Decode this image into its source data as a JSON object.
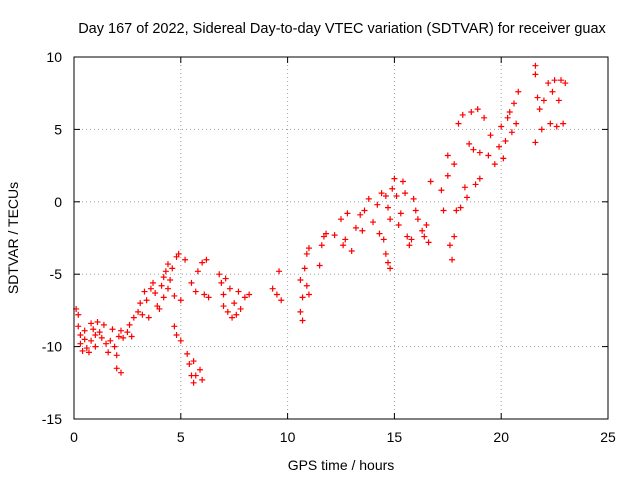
{
  "chart_data": {
    "type": "scatter",
    "title": "Day 167 of 2022, Sidereal Day-to-day VTEC variation (SDTVAR) for receiver guax",
    "xlabel": "GPS time / hours",
    "ylabel": "SDTVAR / TECUs",
    "xlim": [
      0,
      25
    ],
    "ylim": [
      -15,
      10
    ],
    "xticks": [
      0,
      5,
      10,
      15,
      20,
      25
    ],
    "yticks": [
      -15,
      -10,
      -5,
      0,
      5,
      10
    ],
    "xtick_labels": [
      "0",
      "5",
      "10",
      "15",
      "20",
      "25"
    ],
    "ytick_labels": [
      "-15",
      "-10",
      "-5",
      "0",
      "5",
      "10"
    ],
    "grid": true,
    "marker": "+",
    "color": "#ff0000",
    "series": [
      {
        "name": "SDTVAR",
        "points": [
          [
            0.1,
            -7.4
          ],
          [
            0.2,
            -7.8
          ],
          [
            0.2,
            -8.6
          ],
          [
            0.3,
            -9.2
          ],
          [
            0.3,
            -9.8
          ],
          [
            0.4,
            -10.3
          ],
          [
            0.5,
            -9.5
          ],
          [
            0.5,
            -8.9
          ],
          [
            0.6,
            -10.1
          ],
          [
            0.7,
            -10.4
          ],
          [
            0.8,
            -9.6
          ],
          [
            0.8,
            -8.4
          ],
          [
            0.9,
            -8.8
          ],
          [
            1.0,
            -9.2
          ],
          [
            1.0,
            -10.0
          ],
          [
            1.1,
            -8.3
          ],
          [
            1.2,
            -9.0
          ],
          [
            1.3,
            -9.4
          ],
          [
            1.4,
            -8.5
          ],
          [
            1.5,
            -9.8
          ],
          [
            1.6,
            -10.4
          ],
          [
            1.7,
            -9.6
          ],
          [
            1.8,
            -8.8
          ],
          [
            1.9,
            -10.0
          ],
          [
            2.0,
            -10.6
          ],
          [
            2.1,
            -9.3
          ],
          [
            2.2,
            -8.9
          ],
          [
            2.0,
            -11.5
          ],
          [
            2.2,
            -11.8
          ],
          [
            2.3,
            -9.4
          ],
          [
            2.5,
            -9.0
          ],
          [
            2.6,
            -8.5
          ],
          [
            2.7,
            -9.3
          ],
          [
            2.8,
            -8.0
          ],
          [
            3.0,
            -7.6
          ],
          [
            3.1,
            -7.0
          ],
          [
            3.2,
            -7.8
          ],
          [
            3.3,
            -6.2
          ],
          [
            3.4,
            -6.8
          ],
          [
            3.5,
            -8.0
          ],
          [
            3.6,
            -6.0
          ],
          [
            3.7,
            -5.6
          ],
          [
            3.8,
            -6.3
          ],
          [
            3.9,
            -7.2
          ],
          [
            4.0,
            -7.4
          ],
          [
            4.1,
            -5.8
          ],
          [
            4.2,
            -5.2
          ],
          [
            4.2,
            -6.6
          ],
          [
            4.3,
            -4.8
          ],
          [
            4.4,
            -6.0
          ],
          [
            4.4,
            -4.3
          ],
          [
            4.5,
            -5.4
          ],
          [
            4.6,
            -4.6
          ],
          [
            4.7,
            -6.5
          ],
          [
            4.7,
            -8.6
          ],
          [
            4.8,
            -3.8
          ],
          [
            4.8,
            -9.2
          ],
          [
            4.9,
            -3.6
          ],
          [
            5.0,
            -9.6
          ],
          [
            5.0,
            -6.8
          ],
          [
            5.2,
            -4.0
          ],
          [
            5.3,
            -10.5
          ],
          [
            5.4,
            -11.2
          ],
          [
            5.5,
            -12.0
          ],
          [
            5.5,
            -5.6
          ],
          [
            5.6,
            -12.5
          ],
          [
            5.6,
            -11.0
          ],
          [
            5.7,
            -6.2
          ],
          [
            5.7,
            -12.0
          ],
          [
            5.8,
            -4.8
          ],
          [
            5.9,
            -11.6
          ],
          [
            6.0,
            -4.2
          ],
          [
            6.0,
            -12.3
          ],
          [
            6.1,
            -6.4
          ],
          [
            6.2,
            -4.0
          ],
          [
            6.3,
            -6.6
          ],
          [
            6.8,
            -5.0
          ],
          [
            6.9,
            -5.6
          ],
          [
            7.0,
            -6.4
          ],
          [
            7.0,
            -7.2
          ],
          [
            7.1,
            -5.3
          ],
          [
            7.2,
            -7.6
          ],
          [
            7.3,
            -6.0
          ],
          [
            7.4,
            -8.0
          ],
          [
            7.5,
            -7.0
          ],
          [
            7.6,
            -7.8
          ],
          [
            7.7,
            -6.2
          ],
          [
            7.8,
            -7.4
          ],
          [
            8.0,
            -6.6
          ],
          [
            8.2,
            -6.4
          ],
          [
            9.3,
            -6.0
          ],
          [
            9.5,
            -6.4
          ],
          [
            9.6,
            -4.8
          ],
          [
            9.7,
            -6.8
          ],
          [
            10.6,
            -5.4
          ],
          [
            10.6,
            -7.6
          ],
          [
            10.7,
            -6.6
          ],
          [
            10.7,
            -8.2
          ],
          [
            10.8,
            -4.6
          ],
          [
            10.9,
            -3.6
          ],
          [
            10.9,
            -5.8
          ],
          [
            11.0,
            -3.2
          ],
          [
            11.0,
            -6.4
          ],
          [
            11.5,
            -4.4
          ],
          [
            11.6,
            -3.0
          ],
          [
            11.7,
            -2.4
          ],
          [
            11.8,
            -2.2
          ],
          [
            12.2,
            -2.3
          ],
          [
            12.5,
            -1.2
          ],
          [
            12.6,
            -3.0
          ],
          [
            12.7,
            -2.6
          ],
          [
            12.8,
            -0.8
          ],
          [
            13.0,
            -3.4
          ],
          [
            13.2,
            -1.8
          ],
          [
            13.4,
            -0.9
          ],
          [
            13.5,
            -2.0
          ],
          [
            13.6,
            -0.6
          ],
          [
            13.8,
            0.2
          ],
          [
            14.0,
            -1.4
          ],
          [
            14.2,
            -0.2
          ],
          [
            14.3,
            -2.2
          ],
          [
            14.4,
            0.6
          ],
          [
            14.5,
            -2.6
          ],
          [
            14.6,
            0.4
          ],
          [
            14.6,
            -3.6
          ],
          [
            14.7,
            -4.2
          ],
          [
            14.7,
            -0.4
          ],
          [
            14.8,
            -4.6
          ],
          [
            14.8,
            -1.2
          ],
          [
            14.9,
            0.9
          ],
          [
            15.0,
            1.6
          ],
          [
            15.1,
            0.4
          ],
          [
            15.2,
            -1.6
          ],
          [
            15.3,
            -0.8
          ],
          [
            15.4,
            1.4
          ],
          [
            15.5,
            0.6
          ],
          [
            15.6,
            -2.4
          ],
          [
            15.7,
            -3.0
          ],
          [
            15.8,
            -2.6
          ],
          [
            15.9,
            0.2
          ],
          [
            16.0,
            -0.6
          ],
          [
            16.1,
            -1.2
          ],
          [
            16.3,
            -2.0
          ],
          [
            16.4,
            -2.4
          ],
          [
            16.5,
            -1.6
          ],
          [
            16.6,
            -2.8
          ],
          [
            16.7,
            1.4
          ],
          [
            17.2,
            0.8
          ],
          [
            17.3,
            -0.6
          ],
          [
            17.5,
            1.8
          ],
          [
            17.5,
            3.2
          ],
          [
            17.6,
            -3.0
          ],
          [
            17.7,
            -4.0
          ],
          [
            17.8,
            2.6
          ],
          [
            17.8,
            -2.4
          ],
          [
            17.9,
            -0.6
          ],
          [
            18.0,
            5.4
          ],
          [
            18.1,
            -0.4
          ],
          [
            18.2,
            6.0
          ],
          [
            18.3,
            1.0
          ],
          [
            18.4,
            0.3
          ],
          [
            18.5,
            4.0
          ],
          [
            18.6,
            6.2
          ],
          [
            18.7,
            3.6
          ],
          [
            18.8,
            1.2
          ],
          [
            18.9,
            6.4
          ],
          [
            19.0,
            1.6
          ],
          [
            19.0,
            3.4
          ],
          [
            19.2,
            5.8
          ],
          [
            19.4,
            3.2
          ],
          [
            19.5,
            4.6
          ],
          [
            19.7,
            2.6
          ],
          [
            19.9,
            3.8
          ],
          [
            20.0,
            5.2
          ],
          [
            20.1,
            3.0
          ],
          [
            20.2,
            4.2
          ],
          [
            20.3,
            5.8
          ],
          [
            20.4,
            6.2
          ],
          [
            20.5,
            4.8
          ],
          [
            20.6,
            6.8
          ],
          [
            20.7,
            5.4
          ],
          [
            20.8,
            7.6
          ],
          [
            21.6,
            9.4
          ],
          [
            21.6,
            8.8
          ],
          [
            21.7,
            7.2
          ],
          [
            21.8,
            6.4
          ],
          [
            21.9,
            5.0
          ],
          [
            21.6,
            4.1
          ],
          [
            22.0,
            7.0
          ],
          [
            22.2,
            8.2
          ],
          [
            22.3,
            5.4
          ],
          [
            22.4,
            7.6
          ],
          [
            22.5,
            8.4
          ],
          [
            22.6,
            5.2
          ],
          [
            22.7,
            7.0
          ],
          [
            22.8,
            8.4
          ],
          [
            22.9,
            5.4
          ],
          [
            23.0,
            8.2
          ]
        ]
      }
    ]
  }
}
